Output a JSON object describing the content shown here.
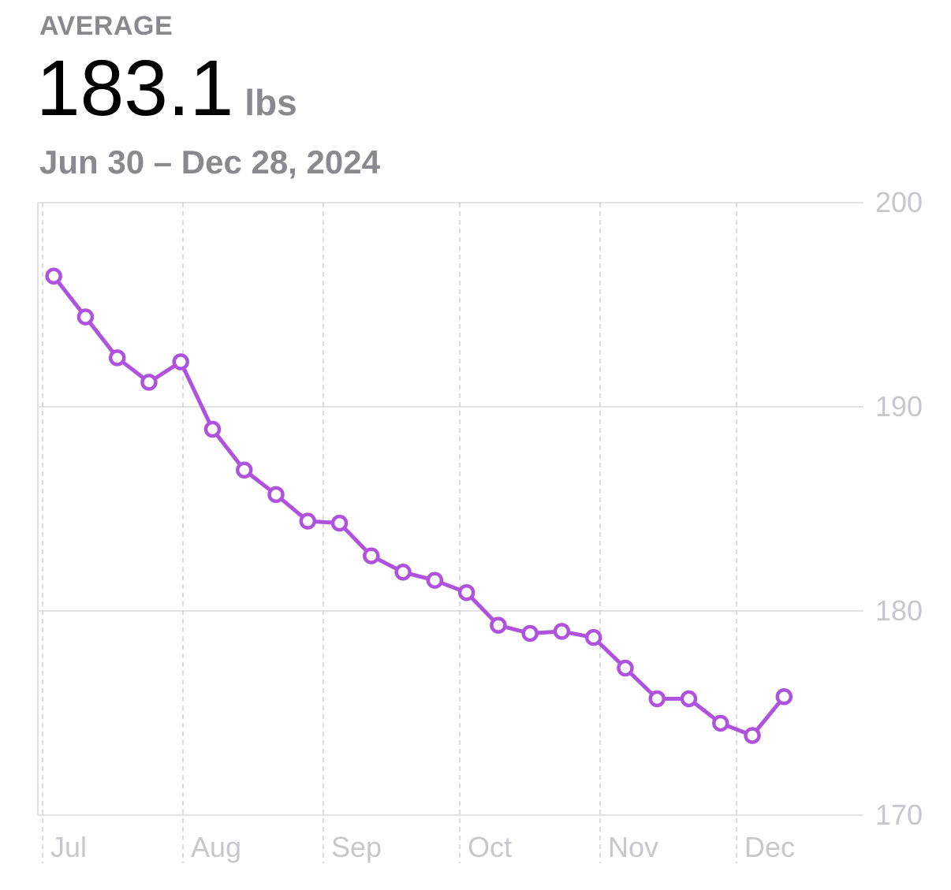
{
  "header": {
    "label": "AVERAGE",
    "value": "183.1",
    "unit": "lbs",
    "range": "Jun 30 – Dec 28, 2024"
  },
  "chart_data": {
    "type": "line",
    "title": "",
    "xlabel": "",
    "ylabel": "",
    "x_domain": [
      "2024-06-30",
      "2024-12-29"
    ],
    "ylim": [
      170,
      200
    ],
    "y_ticks": [
      200,
      190,
      180,
      170
    ],
    "x_ticks": [
      {
        "label": "Jul",
        "date": "2024-07-01"
      },
      {
        "label": "Aug",
        "date": "2024-08-01"
      },
      {
        "label": "Sep",
        "date": "2024-09-01"
      },
      {
        "label": "Oct",
        "date": "2024-10-01"
      },
      {
        "label": "Nov",
        "date": "2024-11-01"
      },
      {
        "label": "Dec",
        "date": "2024-12-01"
      }
    ],
    "grid": true,
    "color": "#AF52DE",
    "x": [
      "2024-06-30",
      "2024-07-07",
      "2024-07-14",
      "2024-07-21",
      "2024-07-28",
      "2024-08-04",
      "2024-08-11",
      "2024-08-18",
      "2024-08-25",
      "2024-09-01",
      "2024-09-08",
      "2024-09-15",
      "2024-09-22",
      "2024-09-29",
      "2024-10-06",
      "2024-10-13",
      "2024-10-20",
      "2024-10-27",
      "2024-11-03",
      "2024-11-10",
      "2024-11-17",
      "2024-11-24",
      "2024-12-01",
      "2024-12-08"
    ],
    "values": [
      196.4,
      194.4,
      192.4,
      191.2,
      192.2,
      188.9,
      186.9,
      185.7,
      184.4,
      184.3,
      182.7,
      181.9,
      181.5,
      180.9,
      179.3,
      178.9,
      179.0,
      178.7,
      177.2,
      175.7,
      175.7,
      174.5,
      173.9,
      175.8
    ]
  }
}
